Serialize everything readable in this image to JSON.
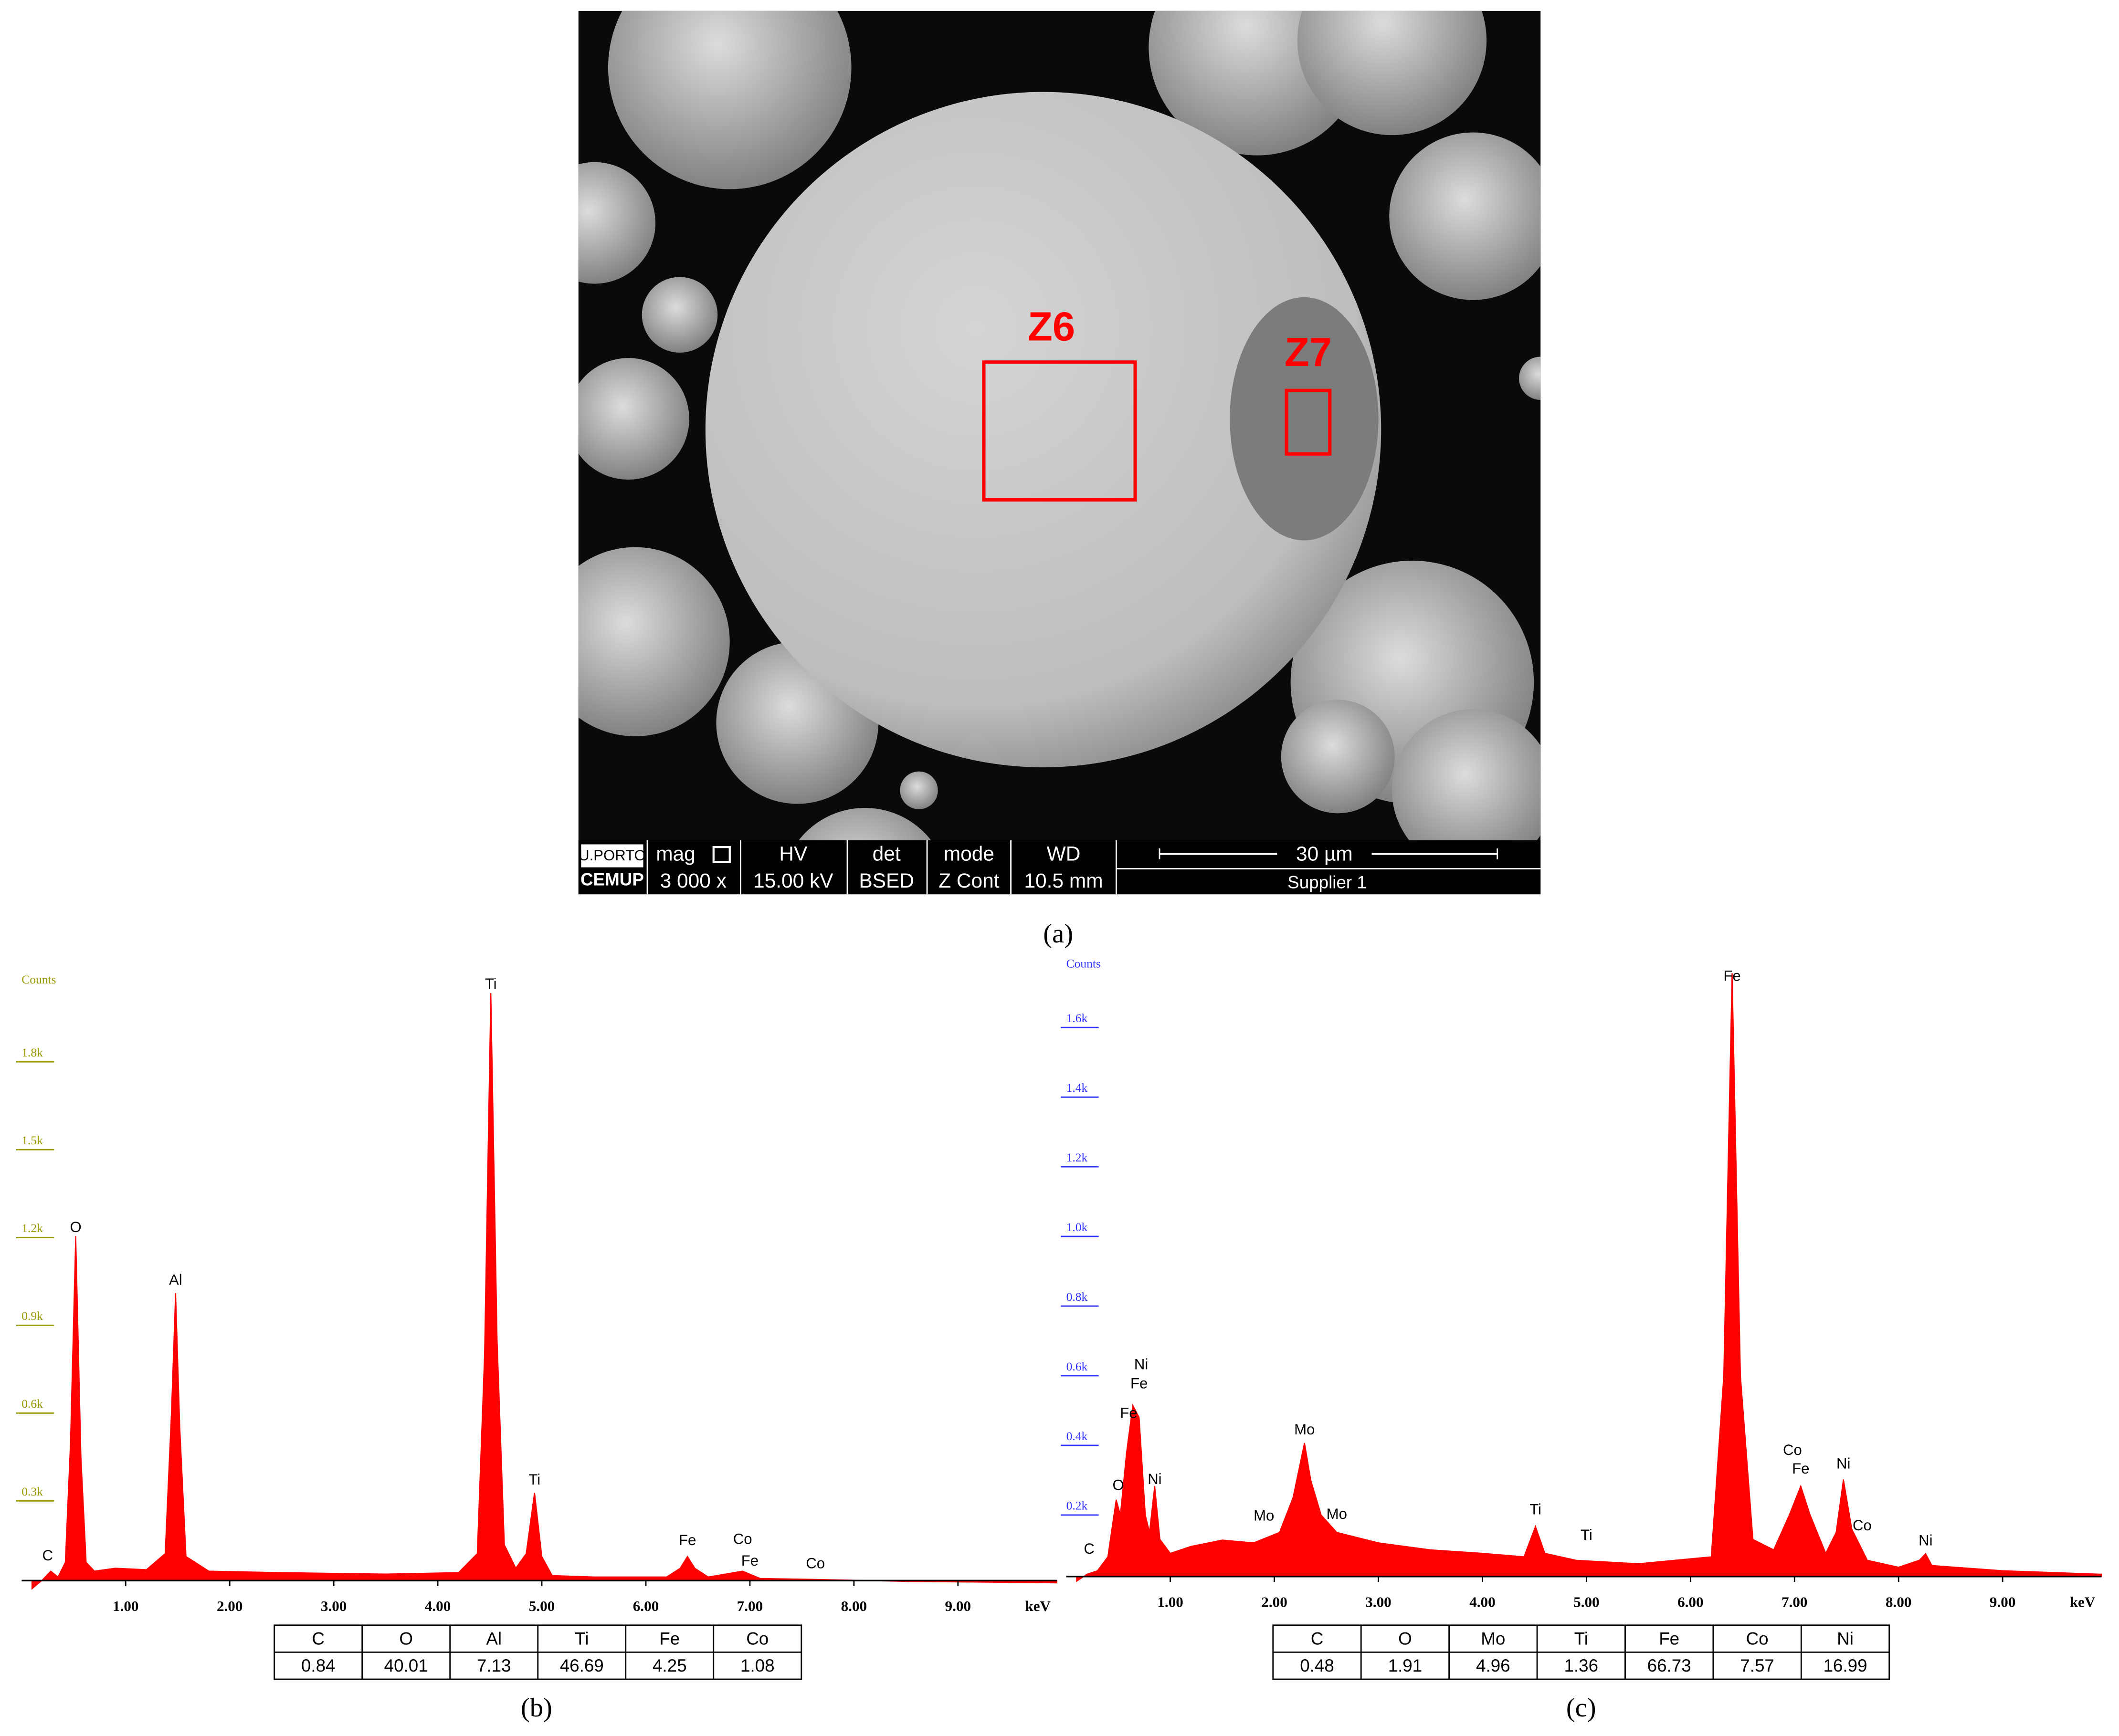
{
  "figure_a": {
    "zones": [
      "Z6",
      "Z7"
    ],
    "info_bar": {
      "logo_top": "U.PORTO",
      "logo_bottom": "CEMUP",
      "labels": [
        "mag",
        "HV",
        "det",
        "mode",
        "WD"
      ],
      "values": [
        "3 000 x",
        "15.00 kV",
        "BSED",
        "Z Cont",
        "10.5 mm"
      ],
      "scale_bar": "30 µm",
      "sample": "Supplier 1"
    },
    "caption": "(a)"
  },
  "chart_data": [
    {
      "type": "area",
      "y_label": "Counts",
      "x_label": "keV",
      "tick_label_color": "#999900",
      "color": "#ff0000",
      "x": [
        0.1,
        0.2,
        0.28,
        0.35,
        0.42,
        0.47,
        0.52,
        0.57,
        0.62,
        0.7,
        0.9,
        1.2,
        1.38,
        1.44,
        1.48,
        1.52,
        1.58,
        1.8,
        2.5,
        3.5,
        4.2,
        4.38,
        4.45,
        4.51,
        4.57,
        4.64,
        4.75,
        4.85,
        4.93,
        5.0,
        5.1,
        5.5,
        6.2,
        6.33,
        6.4,
        6.47,
        6.6,
        6.93,
        7.1,
        7.6,
        8.5,
        9.95
      ],
      "values": [
        0,
        30,
        60,
        40,
        90,
        500,
        1205,
        450,
        90,
        60,
        70,
        65,
        120,
        600,
        1010,
        550,
        110,
        60,
        55,
        50,
        55,
        120,
        800,
        2035,
        850,
        150,
        70,
        120,
        328,
        110,
        45,
        40,
        40,
        70,
        110,
        70,
        40,
        60,
        35,
        32,
        25,
        20
      ],
      "xlim": [
        0,
        9.95
      ],
      "ylim": [
        0,
        2100
      ],
      "xticks": [
        {
          "value": 1,
          "label": "1.00"
        },
        {
          "value": 2,
          "label": "2.00"
        },
        {
          "value": 3,
          "label": "3.00"
        },
        {
          "value": 4,
          "label": "4.00"
        },
        {
          "value": 5,
          "label": "5.00"
        },
        {
          "value": 6,
          "label": "6.00"
        },
        {
          "value": 7,
          "label": "7.00"
        },
        {
          "value": 8,
          "label": "8.00"
        },
        {
          "value": 9,
          "label": "9.00"
        }
      ],
      "yticks": [
        {
          "value": 300,
          "label": "0.3k"
        },
        {
          "value": 600,
          "label": "0.6k"
        },
        {
          "value": 900,
          "label": "0.9k"
        },
        {
          "value": 1200,
          "label": "1.2k"
        },
        {
          "value": 1500,
          "label": "1.5k"
        },
        {
          "value": 1800,
          "label": "1.8k"
        }
      ],
      "peak_labels": [
        {
          "text": "C",
          "x": 0.25,
          "y": 110
        },
        {
          "text": "O",
          "x": 0.52,
          "y": 1232
        },
        {
          "text": "Al",
          "x": 1.48,
          "y": 1052
        },
        {
          "text": "Ti",
          "x": 4.51,
          "y": 2063
        },
        {
          "text": "Ti",
          "x": 4.93,
          "y": 369
        },
        {
          "text": "Fe",
          "x": 6.4,
          "y": 162
        },
        {
          "text": "Co",
          "x": 6.93,
          "y": 166
        },
        {
          "text": "Fe",
          "x": 7.0,
          "y": 92
        },
        {
          "text": "Co",
          "x": 7.63,
          "y": 83
        }
      ],
      "table": {
        "header": [
          "C",
          "O",
          "Al",
          "Ti",
          "Fe",
          "Co"
        ],
        "rows": [
          [
            0.84,
            40.01,
            7.13,
            46.69,
            4.25,
            1.08
          ]
        ]
      },
      "caption": "(b)"
    },
    {
      "type": "area",
      "y_label": "Counts",
      "x_label": "keV",
      "tick_label_color": "#3333ff",
      "color": "#ff0000",
      "x": [
        0.1,
        0.2,
        0.3,
        0.4,
        0.48,
        0.52,
        0.58,
        0.64,
        0.7,
        0.76,
        0.8,
        0.85,
        0.9,
        1.0,
        1.2,
        1.5,
        1.8,
        2.05,
        2.18,
        2.25,
        2.29,
        2.35,
        2.45,
        2.6,
        3.0,
        3.5,
        4.0,
        4.4,
        4.51,
        4.6,
        4.9,
        5.5,
        6.2,
        6.32,
        6.4,
        6.48,
        6.6,
        6.8,
        6.95,
        7.06,
        7.15,
        7.3,
        7.4,
        7.47,
        7.55,
        7.7,
        8.0,
        8.2,
        8.26,
        8.32,
        9.0,
        9.95
      ],
      "values": [
        10,
        30,
        40,
        80,
        244,
        200,
        380,
        515,
        480,
        200,
        150,
        283,
        130,
        90,
        110,
        128,
        120,
        150,
        250,
        350,
        407,
        300,
        200,
        150,
        120,
        100,
        90,
        80,
        167,
        90,
        70,
        60,
        80,
        600,
        1756,
        600,
        130,
        100,
        200,
        283,
        200,
        90,
        150,
        302,
        160,
        70,
        50,
        70,
        89,
        55,
        40,
        30
      ],
      "xlim": [
        0,
        9.95
      ],
      "ylim": [
        0,
        1800
      ],
      "xticks": [
        {
          "value": 1,
          "label": "1.00"
        },
        {
          "value": 2,
          "label": "2.00"
        },
        {
          "value": 3,
          "label": "3.00"
        },
        {
          "value": 4,
          "label": "4.00"
        },
        {
          "value": 5,
          "label": "5.00"
        },
        {
          "value": 6,
          "label": "6.00"
        },
        {
          "value": 7,
          "label": "7.00"
        },
        {
          "value": 8,
          "label": "8.00"
        },
        {
          "value": 9,
          "label": "9.00"
        }
      ],
      "yticks": [
        {
          "value": 200,
          "label": "0.2k"
        },
        {
          "value": 400,
          "label": "0.4k"
        },
        {
          "value": 600,
          "label": "0.6k"
        },
        {
          "value": 800,
          "label": "0.8k"
        },
        {
          "value": 1000,
          "label": "1.0k"
        },
        {
          "value": 1200,
          "label": "1.2k"
        },
        {
          "value": 1400,
          "label": "1.4k"
        },
        {
          "value": 1600,
          "label": "1.6k"
        }
      ],
      "peak_labels": [
        {
          "text": "C",
          "x": 0.22,
          "y": 100
        },
        {
          "text": "O",
          "x": 0.5,
          "y": 283
        },
        {
          "text": "Fe",
          "x": 0.6,
          "y": 490
        },
        {
          "text": "Fe",
          "x": 0.7,
          "y": 575
        },
        {
          "text": "Ni",
          "x": 0.72,
          "y": 630
        },
        {
          "text": "Ni",
          "x": 0.85,
          "y": 300
        },
        {
          "text": "Mo",
          "x": 1.9,
          "y": 195
        },
        {
          "text": "Mo",
          "x": 2.29,
          "y": 443
        },
        {
          "text": "Mo",
          "x": 2.6,
          "y": 200
        },
        {
          "text": "Ti",
          "x": 4.51,
          "y": 213
        },
        {
          "text": "Ti",
          "x": 5.0,
          "y": 140
        },
        {
          "text": "Fe",
          "x": 6.4,
          "y": 1745
        },
        {
          "text": "Co",
          "x": 6.98,
          "y": 384
        },
        {
          "text": "Fe",
          "x": 7.06,
          "y": 330
        },
        {
          "text": "Ni",
          "x": 7.47,
          "y": 345
        },
        {
          "text": "Co",
          "x": 7.65,
          "y": 167
        },
        {
          "text": "Ni",
          "x": 8.26,
          "y": 124
        }
      ],
      "table": {
        "header": [
          "C",
          "O",
          "Mo",
          "Ti",
          "Fe",
          "Co",
          "Ni"
        ],
        "rows": [
          [
            0.48,
            1.91,
            4.96,
            1.36,
            66.73,
            7.57,
            16.99
          ]
        ]
      },
      "caption": "(c)"
    }
  ]
}
